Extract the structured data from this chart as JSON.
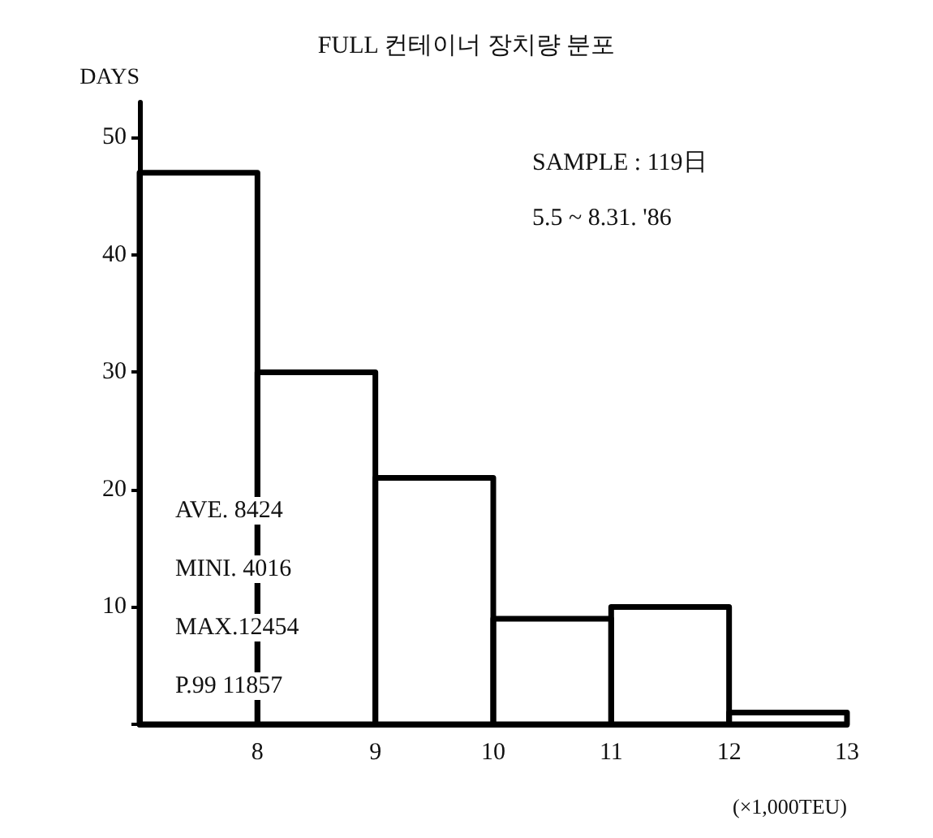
{
  "chart_data": {
    "type": "histogram",
    "title": "FULL 컨테이너 장치량 분포",
    "xlabel": "(×1,000TEU)",
    "ylabel": "DAYS",
    "bins": [
      7,
      8,
      9,
      10,
      11,
      12,
      13
    ],
    "values": [
      47,
      30,
      21,
      9,
      10,
      1
    ],
    "color": "#000000",
    "xlim": [
      7,
      13
    ],
    "xticks": [
      8,
      9,
      10,
      11,
      12,
      13
    ],
    "ylim": [
      0,
      53
    ],
    "yticks": [
      {
        "value": 0,
        "label": null
      },
      10,
      20,
      30,
      40,
      50
    ],
    "grid": false,
    "legend": false,
    "annotations": [
      "SAMPLE : 119日",
      "5.5 ~ 8.31. '86",
      "AVE. 8424",
      "MINI. 4016",
      "MAX.12454",
      "P.99 11857"
    ]
  }
}
